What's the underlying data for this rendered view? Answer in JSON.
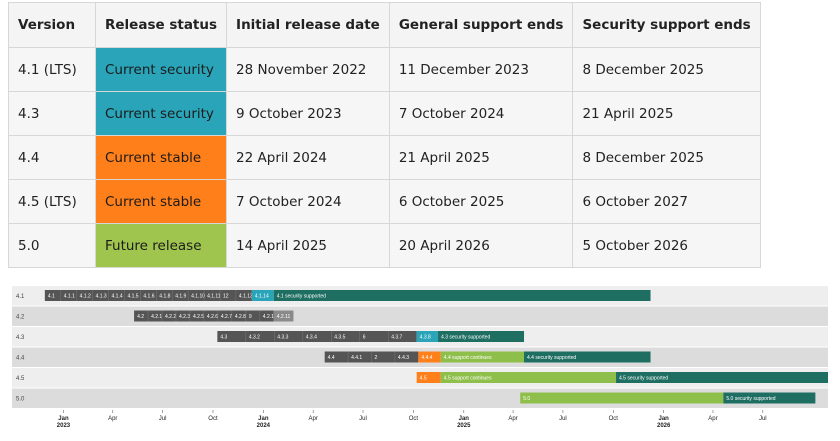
{
  "colors": {
    "current_security": "#29a4b8",
    "current_stable": "#ff7f1a",
    "future_release": "#9fc54f",
    "security_supported": "#1e6e62",
    "support_continues": "#8fbf4b",
    "old_release": "#555555",
    "old_release_light": "#8a8a8a"
  },
  "table": {
    "headers": [
      "Version",
      "Release status",
      "Initial release date",
      "General support ends",
      "Security support ends"
    ],
    "rows": [
      {
        "version": "4.1 (LTS)",
        "status": "Current security",
        "status_key": "current_security",
        "release": "28 November 2022",
        "general_end": "11 December 2023",
        "security_end": "8 December 2025"
      },
      {
        "version": "4.3",
        "status": "Current security",
        "status_key": "current_security",
        "release": "9 October 2023",
        "general_end": "7 October 2024",
        "security_end": "21 April 2025"
      },
      {
        "version": "4.4",
        "status": "Current stable",
        "status_key": "current_stable",
        "release": "22 April 2024",
        "general_end": "21 April 2025",
        "security_end": "8 December 2025"
      },
      {
        "version": "4.5 (LTS)",
        "status": "Current stable",
        "status_key": "current_stable",
        "release": "7 October 2024",
        "general_end": "6 October 2025",
        "security_end": "6 October 2027"
      },
      {
        "version": "5.0",
        "status": "Future release",
        "status_key": "future_release",
        "release": "14 April 2025",
        "general_end": "20 April 2026",
        "security_end": "5 October 2026"
      }
    ]
  },
  "timeline": {
    "lanes": [
      "4.1",
      "4.2",
      "4.3",
      "4.4",
      "4.5",
      "5.0"
    ],
    "ticks": [
      {
        "label": "Jan",
        "year": "2023"
      },
      {
        "label": "Apr",
        "year": ""
      },
      {
        "label": "Jul",
        "year": ""
      },
      {
        "label": "Oct",
        "year": ""
      },
      {
        "label": "Jan",
        "year": "2024"
      },
      {
        "label": "Apr",
        "year": ""
      },
      {
        "label": "Jul",
        "year": ""
      },
      {
        "label": "Oct",
        "year": ""
      },
      {
        "label": "Jan",
        "year": "2025"
      },
      {
        "label": "Apr",
        "year": ""
      },
      {
        "label": "Jul",
        "year": ""
      },
      {
        "label": "Oct",
        "year": ""
      },
      {
        "label": "Jan",
        "year": "2026"
      },
      {
        "label": "Apr",
        "year": ""
      },
      {
        "label": "Jul",
        "year": ""
      }
    ],
    "bars": [
      {
        "lane": 0,
        "kind": "old_release",
        "labels": [
          "4.1",
          "4.1.1",
          "4.1.2",
          "4.1.3",
          "4.1.4",
          "4.1.5",
          "4.1.6",
          "4.1.8",
          "4.1.9",
          "4.1.10",
          "4.1.11",
          "12",
          "4.1.13"
        ],
        "start": "2022-11-28",
        "end": "2023-12-11"
      },
      {
        "lane": 0,
        "kind": "current_security",
        "labels": [
          "4.1.14"
        ],
        "start": "2023-12-11",
        "end": "2024-01-20"
      },
      {
        "lane": 0,
        "kind": "security_supported",
        "labels": [
          "4.1 security supported"
        ],
        "start": "2024-01-20",
        "end": "2025-12-08"
      },
      {
        "lane": 1,
        "kind": "old_release",
        "labels": [
          "4.2",
          "4.2.1",
          "4.2.2",
          "4.2.3",
          "4.2.5",
          "4.2.6",
          "4.2.7",
          "4.2.8",
          "9",
          "4.2.10"
        ],
        "start": "2023-05-10",
        "end": "2024-01-20"
      },
      {
        "lane": 1,
        "kind": "old_release_light",
        "labels": [
          "4.2.11"
        ],
        "start": "2024-01-20",
        "end": "2024-02-25"
      },
      {
        "lane": 2,
        "kind": "old_release",
        "labels": [
          "4.3",
          "4.3.2",
          "4.3.3",
          "4.3.4",
          "4.3.5",
          "6",
          "4.3.7"
        ],
        "start": "2023-10-09",
        "end": "2024-10-07"
      },
      {
        "lane": 2,
        "kind": "current_security",
        "labels": [
          "4.3.8"
        ],
        "start": "2024-10-07",
        "end": "2024-11-15"
      },
      {
        "lane": 2,
        "kind": "security_supported",
        "labels": [
          "4.3 security supported"
        ],
        "start": "2024-11-15",
        "end": "2025-04-21"
      },
      {
        "lane": 3,
        "kind": "old_release",
        "labels": [
          "4.4",
          "4.4.1",
          "2",
          "4.4.3"
        ],
        "start": "2024-04-22",
        "end": "2024-10-10"
      },
      {
        "lane": 3,
        "kind": "current_stable",
        "labels": [
          "4.4.4"
        ],
        "start": "2024-10-10",
        "end": "2024-11-20"
      },
      {
        "lane": 3,
        "kind": "support_continues",
        "labels": [
          "4.4 support continues"
        ],
        "start": "2024-11-20",
        "end": "2025-04-21"
      },
      {
        "lane": 3,
        "kind": "security_supported",
        "labels": [
          "4.4 security supported"
        ],
        "start": "2025-04-21",
        "end": "2025-12-08"
      },
      {
        "lane": 4,
        "kind": "current_stable",
        "labels": [
          "4.5"
        ],
        "start": "2024-10-07",
        "end": "2024-11-20"
      },
      {
        "lane": 4,
        "kind": "support_continues",
        "labels": [
          "4.5 support continues"
        ],
        "start": "2024-11-20",
        "end": "2025-10-06"
      },
      {
        "lane": 4,
        "kind": "security_supported",
        "labels": [
          "4.5 security supported"
        ],
        "start": "2025-10-06",
        "end": "2027-10-06"
      },
      {
        "lane": 5,
        "kind": "support_continues",
        "labels": [
          "5.0"
        ],
        "start": "2025-04-14",
        "end": "2026-04-20"
      },
      {
        "lane": 5,
        "kind": "security_supported",
        "labels": [
          "5.0 security supported"
        ],
        "start": "2026-04-20",
        "end": "2026-10-05"
      }
    ]
  }
}
